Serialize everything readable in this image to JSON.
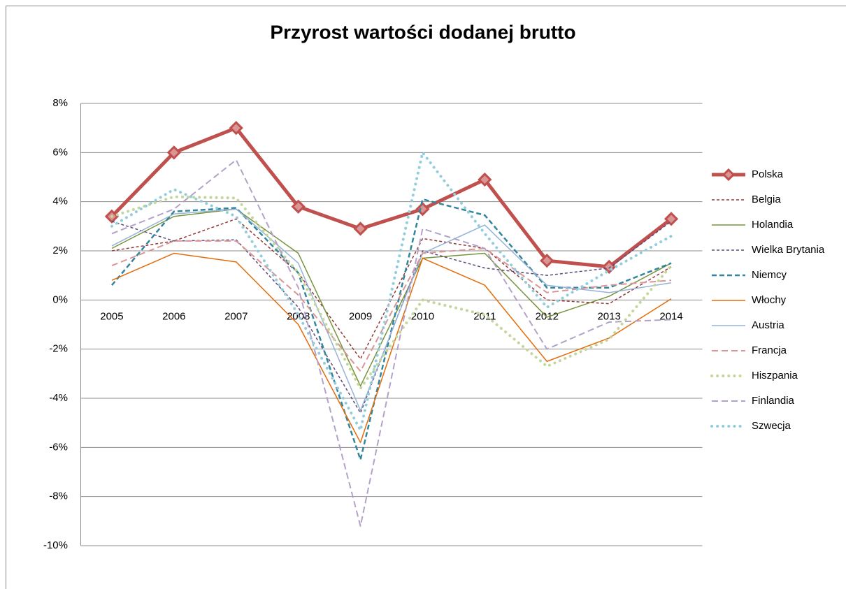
{
  "chart_data": {
    "type": "line",
    "title": "Przyrost wartości dodanej brutto",
    "categories": [
      "2005",
      "2006",
      "2007",
      "2008",
      "2009",
      "2010",
      "2011",
      "2012",
      "2013",
      "2014"
    ],
    "ylim": [
      -10,
      8
    ],
    "yticks": [
      {
        "value": -10,
        "label": "-10%"
      },
      {
        "value": -8,
        "label": "-8%"
      },
      {
        "value": -6,
        "label": "-6%"
      },
      {
        "value": -4,
        "label": "-4%"
      },
      {
        "value": -2,
        "label": "-2%"
      },
      {
        "value": 0,
        "label": "0%"
      },
      {
        "value": 2,
        "label": "2%"
      },
      {
        "value": 4,
        "label": "4%"
      },
      {
        "value": 6,
        "label": "6%"
      },
      {
        "value": 8,
        "label": "8%"
      }
    ],
    "grid": true,
    "legend": "right",
    "series": [
      {
        "name": "Polska",
        "color": "#c0504d",
        "line_style": "thick-diamond",
        "values": [
          3.4,
          6.0,
          7.0,
          3.8,
          2.9,
          3.7,
          4.9,
          1.6,
          1.35,
          3.3
        ]
      },
      {
        "name": "Belgia",
        "color": "#953735",
        "line_style": "dash",
        "values": [
          2.0,
          2.4,
          3.3,
          1.1,
          -2.4,
          2.5,
          2.1,
          0.0,
          -0.15,
          1.35
        ]
      },
      {
        "name": "Holandia",
        "color": "#77933c",
        "line_style": "solid",
        "values": [
          2.1,
          3.4,
          3.7,
          1.9,
          -3.5,
          1.7,
          1.9,
          -0.7,
          0.15,
          1.5
        ]
      },
      {
        "name": "Wielka Brytania",
        "color": "#604a7b",
        "line_style": "dash",
        "values": [
          3.2,
          2.4,
          2.45,
          -0.3,
          -4.6,
          2.0,
          1.3,
          1.0,
          1.3,
          3.2
        ]
      },
      {
        "name": "Niemcy",
        "color": "#31859c",
        "line_style": "thick-dash",
        "values": [
          0.6,
          3.6,
          3.75,
          1.1,
          -6.5,
          4.1,
          3.45,
          0.5,
          0.5,
          1.5
        ]
      },
      {
        "name": "Włochy",
        "color": "#e46c0a",
        "line_style": "solid",
        "values": [
          0.8,
          1.9,
          1.55,
          -1.0,
          -5.8,
          1.7,
          0.6,
          -2.5,
          -1.55,
          0.05
        ]
      },
      {
        "name": "Austria",
        "color": "#95b3d7",
        "line_style": "solid",
        "values": [
          2.2,
          3.5,
          3.7,
          1.5,
          -4.5,
          1.9,
          3.05,
          0.6,
          0.3,
          0.7
        ]
      },
      {
        "name": "Francja",
        "color": "#d99694",
        "line_style": "long-dash",
        "values": [
          1.4,
          2.4,
          2.4,
          0.2,
          -2.9,
          1.9,
          2.1,
          0.3,
          0.6,
          0.8
        ]
      },
      {
        "name": "Hiszpania",
        "color": "#c3d69b",
        "line_style": "dot",
        "values": [
          3.4,
          4.2,
          4.15,
          1.1,
          -3.6,
          0.0,
          -0.6,
          -2.7,
          -1.6,
          1.4
        ]
      },
      {
        "name": "Finlandia",
        "color": "#b3a2c7",
        "line_style": "long-dash",
        "values": [
          2.7,
          3.7,
          5.7,
          0.5,
          -9.2,
          2.9,
          2.1,
          -2.0,
          -0.9,
          -0.8
        ]
      },
      {
        "name": "Szwecja",
        "color": "#93cddd",
        "line_style": "dot",
        "values": [
          3.0,
          4.5,
          3.4,
          -0.6,
          -5.3,
          6.0,
          2.7,
          -0.3,
          1.2,
          2.6
        ]
      }
    ]
  }
}
